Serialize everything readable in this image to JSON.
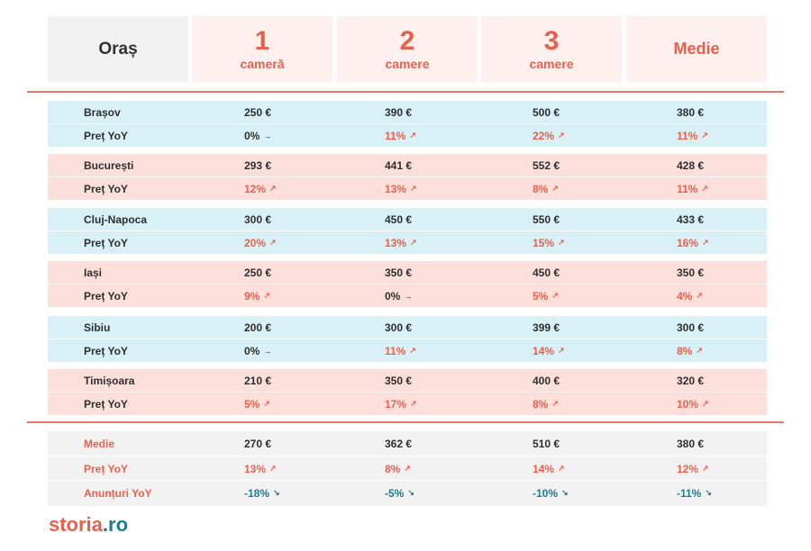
{
  "header": {
    "city_label": "Oraș",
    "col1_num": "1",
    "col1_sub": "cameră",
    "col2_num": "2",
    "col2_sub": "camere",
    "col3_num": "3",
    "col3_sub": "camere",
    "col4_label": "Medie"
  },
  "row_label_yoy": "Preț YoY",
  "cities": [
    {
      "name": "Brașov",
      "prices": [
        "250 €",
        "390 €",
        "500 €",
        "380 €"
      ],
      "yoy": [
        "0%",
        "11%",
        "22%",
        "11%"
      ],
      "yoy_trend": [
        "flat",
        "up",
        "up",
        "up"
      ]
    },
    {
      "name": "București",
      "prices": [
        "293 €",
        "441 €",
        "552 €",
        "428 €"
      ],
      "yoy": [
        "12%",
        "13%",
        "8%",
        "11%"
      ],
      "yoy_trend": [
        "up",
        "up",
        "up",
        "up"
      ]
    },
    {
      "name": "Cluj-Napoca",
      "prices": [
        "300 €",
        "450 €",
        "550 €",
        "433 €"
      ],
      "yoy": [
        "20%",
        "13%",
        "15%",
        "16%"
      ],
      "yoy_trend": [
        "up",
        "up",
        "up",
        "up"
      ]
    },
    {
      "name": "Iași",
      "prices": [
        "250 €",
        "350 €",
        "450 €",
        "350 €"
      ],
      "yoy": [
        "9%",
        "0%",
        "5%",
        "4%"
      ],
      "yoy_trend": [
        "up",
        "flat",
        "up",
        "up"
      ]
    },
    {
      "name": "Sibiu",
      "prices": [
        "200 €",
        "300 €",
        "399 €",
        "300 €"
      ],
      "yoy": [
        "0%",
        "11%",
        "14%",
        "8%"
      ],
      "yoy_trend": [
        "flat",
        "up",
        "up",
        "up"
      ]
    },
    {
      "name": "Timișoara",
      "prices": [
        "210 €",
        "350 €",
        "400 €",
        "320 €"
      ],
      "yoy": [
        "5%",
        "17%",
        "8%",
        "10%"
      ],
      "yoy_trend": [
        "up",
        "up",
        "up",
        "up"
      ]
    }
  ],
  "summary": {
    "label": "Medie",
    "prices": [
      "270 €",
      "362 €",
      "510 €",
      "380 €"
    ],
    "yoy_label": "Preț YoY",
    "yoy": [
      "13%",
      "8%",
      "14%",
      "12%"
    ],
    "listings_label": "Anunțuri YoY",
    "listings": [
      "-18%",
      "-5%",
      "-10%",
      "-11%"
    ]
  },
  "logo": {
    "part1": "storia",
    "part2": ".ro"
  },
  "colors": {
    "accent": "#e8604c",
    "teal": "#1f7a8c",
    "band_blue": "#d8f1f6",
    "band_pink": "#fde0dc",
    "band_gray": "#f2f2f2"
  },
  "icons": {
    "up": "arrow-up-right-icon",
    "flat": "arrow-right-icon",
    "down": "arrow-down-right-icon"
  }
}
